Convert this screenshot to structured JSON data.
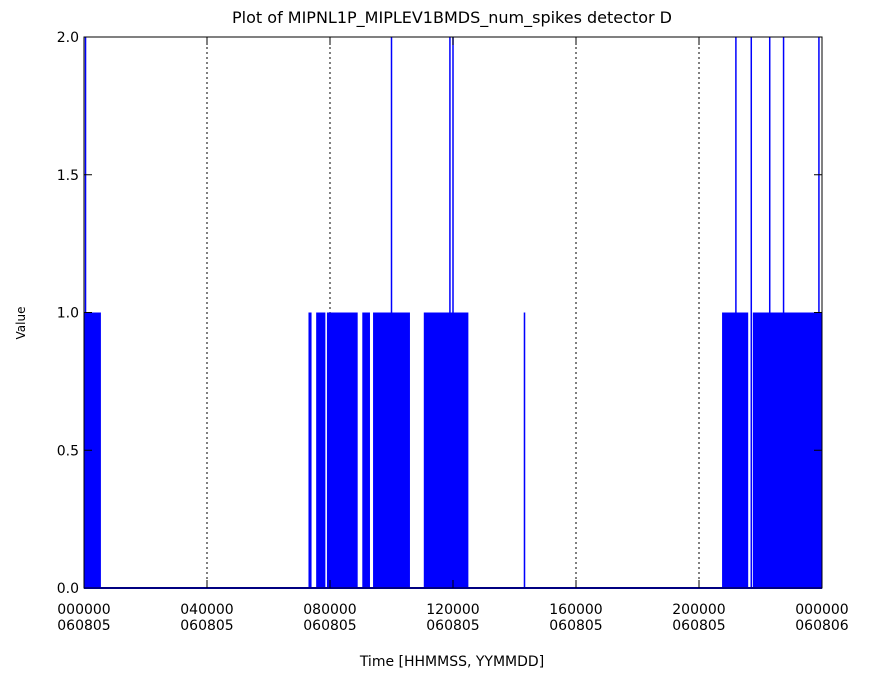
{
  "chart_data": {
    "type": "line",
    "title": "Plot of MIPNL1P_MIPLEV1BMDS_num_spikes detector D",
    "xlabel": "Time [HHMMSS, YYMMDD]",
    "ylabel": "Value",
    "xlim": [
      0,
      24
    ],
    "ylim": [
      0,
      2
    ],
    "x_unit": "hours since 000000 060805",
    "y_ticks": [
      "0.0",
      "0.5",
      "1.0",
      "1.5",
      "2.0"
    ],
    "x_ticks": [
      {
        "time": "000000",
        "date": "060805"
      },
      {
        "time": "040000",
        "date": "060805"
      },
      {
        "time": "080000",
        "date": "060805"
      },
      {
        "time": "120000",
        "date": "060805"
      },
      {
        "time": "160000",
        "date": "060805"
      },
      {
        "time": "200000",
        "date": "060805"
      },
      {
        "time": "000000",
        "date": "060806"
      }
    ],
    "grid_x_hours": [
      4,
      8,
      12,
      16,
      20
    ],
    "series_color": "#0000ff",
    "series": [
      {
        "name": "num_spikes",
        "blocks_value_1": [
          [
            0.0,
            0.55
          ],
          [
            7.3,
            7.4
          ],
          [
            7.55,
            7.85
          ],
          [
            7.9,
            8.9
          ],
          [
            9.05,
            9.3
          ],
          [
            9.4,
            10.6
          ],
          [
            11.05,
            12.5
          ],
          [
            14.3,
            14.35
          ],
          [
            20.75,
            21.6
          ],
          [
            21.75,
            24.0
          ]
        ],
        "spikes_value_2": [
          0.05,
          10.0,
          11.9,
          12.0,
          21.2,
          21.7,
          22.3,
          22.75,
          23.9
        ],
        "spikes_value_0_5": [
          7.6
        ]
      }
    ]
  }
}
